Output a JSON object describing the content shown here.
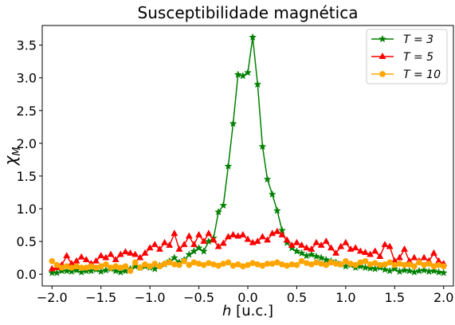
{
  "chart_data": {
    "type": "line",
    "title": "Susceptibilidade magnética",
    "xlabel": "h [u.c.]",
    "ylabel": "χ_M",
    "xlim": [
      -2.1,
      2.1
    ],
    "ylim": [
      -0.18,
      3.8
    ],
    "xticks": [
      -2.0,
      -1.5,
      -1.0,
      -0.5,
      0.0,
      0.5,
      1.0,
      1.5,
      2.0
    ],
    "xtick_labels": [
      "−2.0",
      "−1.5",
      "−1.0",
      "−0.5",
      "0.0",
      "0.5",
      "1.0",
      "1.5",
      "2.0"
    ],
    "yticks": [
      0.0,
      0.5,
      1.0,
      1.5,
      2.0,
      2.5,
      3.0,
      3.5
    ],
    "ytick_labels": [
      "0.0",
      "0.5",
      "1.0",
      "1.5",
      "2.0",
      "2.5",
      "3.0",
      "3.5"
    ],
    "grid": false,
    "legend_position": "top-right",
    "x": [
      -2.0,
      -1.95,
      -1.9,
      -1.85,
      -1.8,
      -1.75,
      -1.7,
      -1.65,
      -1.6,
      -1.55,
      -1.5,
      -1.45,
      -1.4,
      -1.35,
      -1.3,
      -1.25,
      -1.2,
      -1.15,
      -1.1,
      -1.05,
      -1.0,
      -0.95,
      -0.9,
      -0.85,
      -0.8,
      -0.75,
      -0.7,
      -0.65,
      -0.6,
      -0.55,
      -0.5,
      -0.45,
      -0.4,
      -0.35,
      -0.3,
      -0.25,
      -0.2,
      -0.15,
      -0.1,
      -0.05,
      0.0,
      0.05,
      0.1,
      0.15,
      0.2,
      0.25,
      0.3,
      0.35,
      0.4,
      0.45,
      0.5,
      0.55,
      0.6,
      0.65,
      0.7,
      0.75,
      0.8,
      0.85,
      0.9,
      0.95,
      1.0,
      1.05,
      1.1,
      1.15,
      1.2,
      1.25,
      1.3,
      1.35,
      1.4,
      1.45,
      1.5,
      1.55,
      1.6,
      1.65,
      1.7,
      1.75,
      1.8,
      1.85,
      1.9,
      1.95,
      2.0
    ],
    "series": [
      {
        "name": "T = 3",
        "color": "#008000",
        "marker": "star",
        "values": [
          0.02,
          0.02,
          0.05,
          0.05,
          0.04,
          0.06,
          0.03,
          0.05,
          0.05,
          0.07,
          0.04,
          0.06,
          0.08,
          0.05,
          0.03,
          0.05,
          0.08,
          0.12,
          0.1,
          0.12,
          0.1,
          0.08,
          0.13,
          0.15,
          0.2,
          0.25,
          0.18,
          0.22,
          0.3,
          0.35,
          0.4,
          0.35,
          0.5,
          0.55,
          0.95,
          1.05,
          1.65,
          2.3,
          3.05,
          3.03,
          3.08,
          3.62,
          2.9,
          1.95,
          1.45,
          1.22,
          0.97,
          0.67,
          0.48,
          0.4,
          0.35,
          0.32,
          0.28,
          0.3,
          0.27,
          0.25,
          0.22,
          0.2,
          0.18,
          0.15,
          0.12,
          0.14,
          0.1,
          0.12,
          0.1,
          0.09,
          0.08,
          0.1,
          0.07,
          0.05,
          0.08,
          0.04,
          0.06,
          0.05,
          0.03,
          0.05,
          0.06,
          0.04,
          0.05,
          0.03,
          0.02
        ]
      },
      {
        "name": "T = 5",
        "color": "#ff0000",
        "marker": "triangle",
        "values": [
          0.08,
          0.1,
          0.14,
          0.28,
          0.16,
          0.2,
          0.26,
          0.22,
          0.16,
          0.2,
          0.28,
          0.25,
          0.3,
          0.22,
          0.3,
          0.34,
          0.32,
          0.3,
          0.25,
          0.32,
          0.4,
          0.45,
          0.38,
          0.48,
          0.44,
          0.62,
          0.38,
          0.45,
          0.58,
          0.45,
          0.6,
          0.5,
          0.62,
          0.52,
          0.42,
          0.47,
          0.57,
          0.6,
          0.58,
          0.6,
          0.53,
          0.48,
          0.5,
          0.57,
          0.52,
          0.62,
          0.65,
          0.6,
          0.52,
          0.44,
          0.48,
          0.44,
          0.4,
          0.38,
          0.48,
          0.44,
          0.5,
          0.4,
          0.32,
          0.42,
          0.48,
          0.38,
          0.4,
          0.35,
          0.33,
          0.3,
          0.35,
          0.27,
          0.45,
          0.42,
          0.2,
          0.25,
          0.38,
          0.2,
          0.25,
          0.2,
          0.25,
          0.2,
          0.32,
          0.2,
          0.16
        ]
      },
      {
        "name": "T = 10",
        "color": "#ffa500",
        "marker": "circle",
        "values": [
          0.2,
          0.14,
          0.1,
          0.12,
          0.1,
          0.12,
          0.1,
          0.1,
          0.12,
          0.1,
          0.12,
          0.15,
          0.1,
          0.12,
          0.1,
          0.12,
          0.05,
          0.18,
          0.1,
          0.15,
          0.12,
          0.16,
          0.12,
          0.16,
          0.18,
          0.15,
          0.14,
          0.2,
          0.14,
          0.18,
          0.16,
          0.14,
          0.17,
          0.15,
          0.13,
          0.16,
          0.18,
          0.13,
          0.15,
          0.12,
          0.14,
          0.17,
          0.15,
          0.13,
          0.16,
          0.16,
          0.18,
          0.15,
          0.13,
          0.15,
          0.14,
          0.2,
          0.17,
          0.15,
          0.18,
          0.16,
          0.14,
          0.18,
          0.16,
          0.15,
          0.2,
          0.16,
          0.14,
          0.18,
          0.2,
          0.15,
          0.17,
          0.14,
          0.15,
          0.18,
          0.14,
          0.16,
          0.14,
          0.15,
          0.12,
          0.18,
          0.14,
          0.16,
          0.12,
          0.14,
          0.12
        ]
      }
    ]
  }
}
